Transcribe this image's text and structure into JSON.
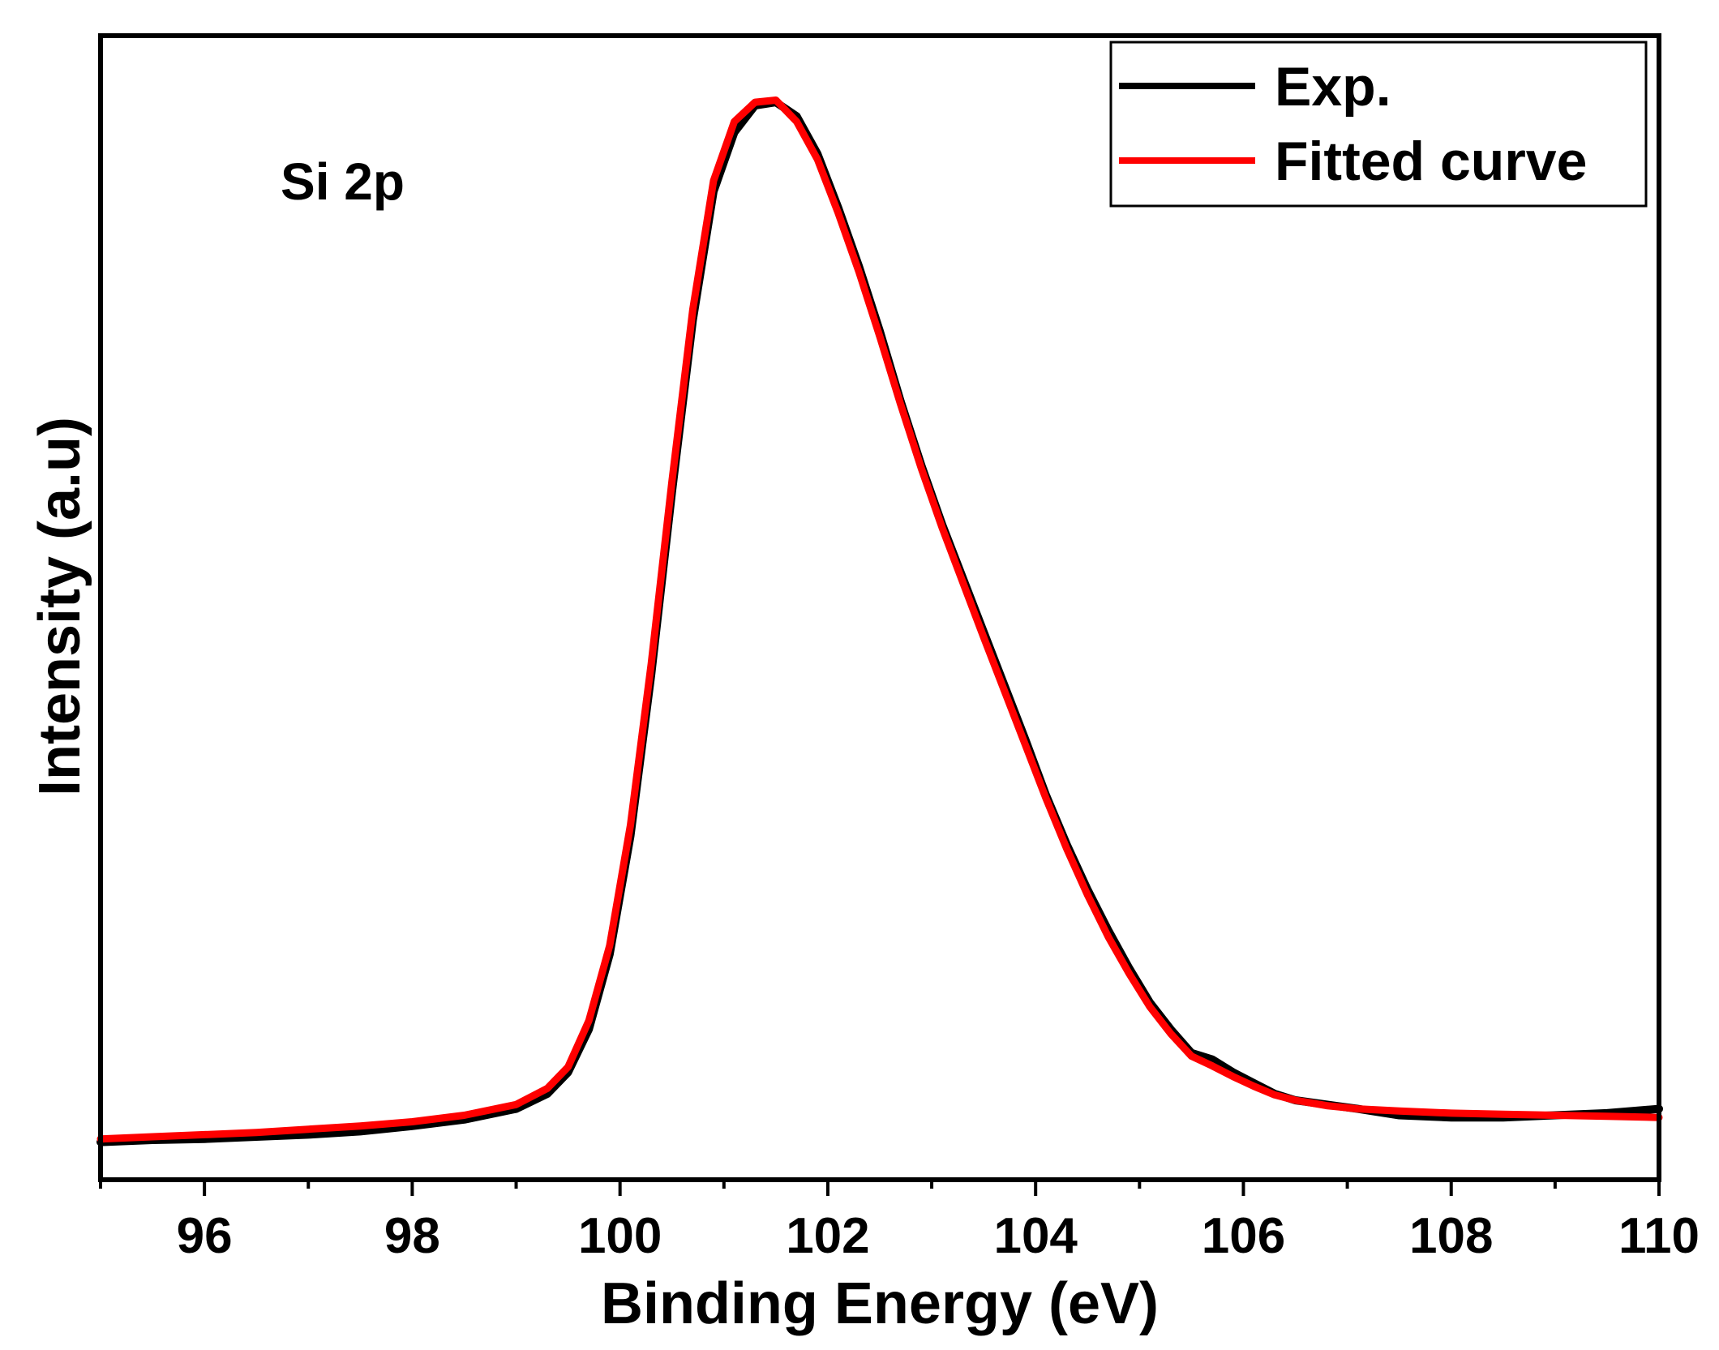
{
  "chart_data": {
    "type": "line",
    "title": "",
    "xlabel": "Binding Energy (eV)",
    "ylabel": "Intensity (a.u)",
    "xlim": [
      95,
      110
    ],
    "ylim": [
      0,
      1.065
    ],
    "x_ticks": [
      96,
      98,
      100,
      102,
      104,
      106,
      108,
      110
    ],
    "x_tick_labels": [
      "96",
      "98",
      "100",
      "102",
      "104",
      "106",
      "108",
      "110"
    ],
    "annotation": "Si 2p",
    "legend_position": "top-right",
    "series": [
      {
        "name": "Exp.",
        "color": "#000000",
        "x": [
          95.0,
          95.5,
          96.0,
          96.5,
          97.0,
          97.5,
          98.0,
          98.5,
          99.0,
          99.3,
          99.5,
          99.7,
          99.9,
          100.1,
          100.3,
          100.5,
          100.7,
          100.9,
          101.1,
          101.3,
          101.5,
          101.7,
          101.9,
          102.1,
          102.3,
          102.5,
          102.7,
          102.9,
          103.1,
          103.3,
          103.5,
          103.7,
          103.9,
          104.1,
          104.3,
          104.5,
          104.7,
          104.9,
          105.1,
          105.3,
          105.5,
          105.7,
          105.9,
          106.1,
          106.3,
          106.5,
          106.8,
          107.1,
          107.5,
          108.0,
          108.5,
          109.0,
          109.5,
          110.0
        ],
        "y": [
          0.035,
          0.037,
          0.038,
          0.04,
          0.042,
          0.045,
          0.05,
          0.056,
          0.066,
          0.08,
          0.1,
          0.14,
          0.21,
          0.32,
          0.47,
          0.64,
          0.8,
          0.92,
          0.975,
          1.0,
          1.003,
          0.99,
          0.955,
          0.905,
          0.85,
          0.79,
          0.725,
          0.665,
          0.61,
          0.56,
          0.51,
          0.46,
          0.41,
          0.358,
          0.312,
          0.27,
          0.232,
          0.197,
          0.165,
          0.14,
          0.118,
          0.112,
          0.1,
          0.09,
          0.08,
          0.074,
          0.07,
          0.066,
          0.06,
          0.058,
          0.058,
          0.06,
          0.062,
          0.066
        ]
      },
      {
        "name": "Fitted curve",
        "color": "#ff0000",
        "x": [
          95.0,
          95.5,
          96.0,
          96.5,
          97.0,
          97.5,
          98.0,
          98.5,
          99.0,
          99.3,
          99.5,
          99.7,
          99.9,
          100.1,
          100.3,
          100.5,
          100.7,
          100.9,
          101.1,
          101.3,
          101.5,
          101.7,
          101.9,
          102.1,
          102.3,
          102.5,
          102.7,
          102.9,
          103.1,
          103.3,
          103.5,
          103.7,
          103.9,
          104.1,
          104.3,
          104.5,
          104.7,
          104.9,
          105.1,
          105.3,
          105.5,
          105.7,
          105.9,
          106.1,
          106.3,
          106.5,
          106.8,
          107.1,
          107.5,
          108.0,
          108.5,
          109.0,
          109.5,
          110.0
        ],
        "y": [
          0.038,
          0.04,
          0.042,
          0.044,
          0.047,
          0.05,
          0.054,
          0.06,
          0.07,
          0.085,
          0.105,
          0.148,
          0.218,
          0.33,
          0.48,
          0.65,
          0.81,
          0.93,
          0.985,
          1.003,
          1.005,
          0.985,
          0.95,
          0.9,
          0.845,
          0.785,
          0.722,
          0.662,
          0.607,
          0.556,
          0.505,
          0.455,
          0.405,
          0.355,
          0.308,
          0.265,
          0.226,
          0.192,
          0.161,
          0.136,
          0.115,
          0.106,
          0.096,
          0.087,
          0.079,
          0.074,
          0.069,
          0.066,
          0.064,
          0.062,
          0.061,
          0.06,
          0.059,
          0.058
        ]
      }
    ]
  }
}
